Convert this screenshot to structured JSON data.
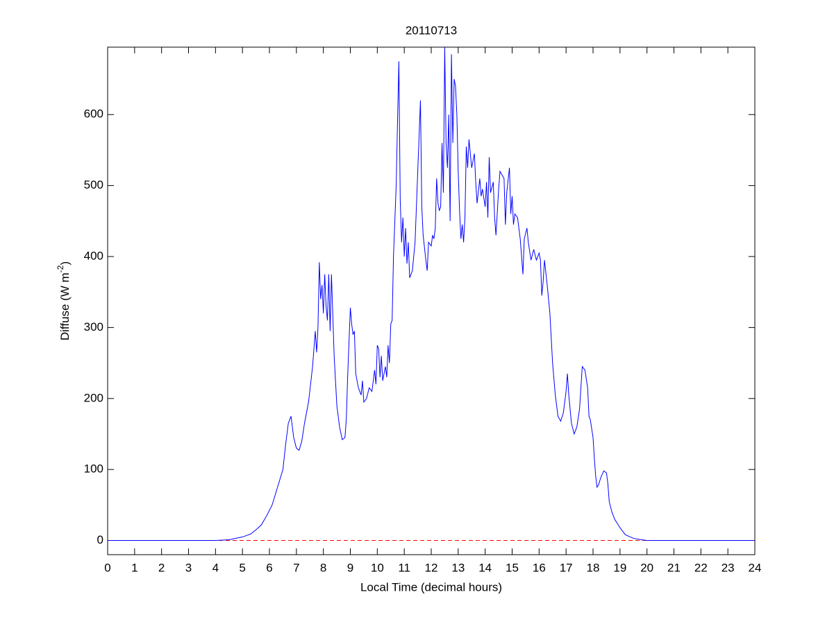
{
  "chart_data": {
    "type": "line",
    "title": "20110713",
    "xlabel": "Local Time (decimal hours)",
    "ylabel": [
      "Diffuse (W m",
      "-2",
      ")"
    ],
    "xlim": [
      0,
      24
    ],
    "xticks": [
      0,
      1,
      2,
      3,
      4,
      5,
      6,
      7,
      8,
      9,
      10,
      11,
      12,
      13,
      14,
      15,
      16,
      17,
      18,
      19,
      20,
      21,
      22,
      23,
      24
    ],
    "ylim": [
      -20,
      695
    ],
    "yticks": [
      0,
      100,
      200,
      300,
      400,
      500,
      600
    ],
    "grid": false,
    "reference_line": {
      "value": 0,
      "color": "#ff0000",
      "dashed": true
    },
    "x": [
      0,
      2,
      4,
      4.5,
      5,
      5.3,
      5.5,
      5.7,
      5.9,
      6.1,
      6.3,
      6.5,
      6.6,
      6.7,
      6.8,
      6.9,
      7.0,
      7.1,
      7.2,
      7.3,
      7.45,
      7.6,
      7.7,
      7.75,
      7.8,
      7.85,
      7.9,
      7.95,
      8.0,
      8.05,
      8.1,
      8.15,
      8.2,
      8.25,
      8.3,
      8.4,
      8.5,
      8.6,
      8.7,
      8.8,
      8.85,
      8.9,
      9.0,
      9.05,
      9.1,
      9.15,
      9.2,
      9.3,
      9.4,
      9.45,
      9.5,
      9.6,
      9.7,
      9.8,
      9.9,
      9.95,
      10.0,
      10.05,
      10.1,
      10.15,
      10.2,
      10.3,
      10.35,
      10.4,
      10.45,
      10.5,
      10.55,
      10.6,
      10.7,
      10.75,
      10.8,
      10.85,
      10.9,
      10.95,
      11.0,
      11.05,
      11.1,
      11.15,
      11.2,
      11.3,
      11.4,
      11.5,
      11.6,
      11.65,
      11.7,
      11.8,
      11.85,
      11.9,
      12.0,
      12.05,
      12.1,
      12.15,
      12.2,
      12.25,
      12.3,
      12.35,
      12.4,
      12.45,
      12.5,
      12.55,
      12.6,
      12.65,
      12.7,
      12.75,
      12.8,
      12.85,
      12.9,
      12.95,
      13.0,
      13.05,
      13.1,
      13.15,
      13.2,
      13.25,
      13.3,
      13.35,
      13.4,
      13.5,
      13.6,
      13.65,
      13.7,
      13.8,
      13.85,
      13.9,
      14.0,
      14.05,
      14.1,
      14.15,
      14.2,
      14.3,
      14.35,
      14.4,
      14.5,
      14.55,
      14.7,
      14.75,
      14.8,
      14.9,
      14.95,
      15.0,
      15.05,
      15.1,
      15.2,
      15.3,
      15.4,
      15.45,
      15.55,
      15.6,
      15.7,
      15.8,
      15.9,
      16.0,
      16.05,
      16.1,
      16.15,
      16.2,
      16.3,
      16.4,
      16.5,
      16.6,
      16.7,
      16.8,
      16.9,
      17.0,
      17.05,
      17.1,
      17.2,
      17.3,
      17.4,
      17.5,
      17.6,
      17.7,
      17.8,
      17.85,
      17.9,
      18.0,
      18.05,
      18.1,
      18.15,
      18.2,
      18.3,
      18.4,
      18.5,
      18.55,
      18.6,
      18.7,
      18.8,
      19.0,
      19.2,
      19.5,
      19.8,
      20,
      22,
      24
    ],
    "series": [
      {
        "color": "#0000ff",
        "values": [
          0,
          0,
          0,
          1,
          5,
          9,
          15,
          22,
          35,
          50,
          75,
          100,
          135,
          165,
          175,
          145,
          130,
          127,
          140,
          165,
          195,
          245,
          295,
          265,
          300,
          392,
          340,
          360,
          320,
          375,
          330,
          310,
          375,
          295,
          375,
          260,
          190,
          160,
          142,
          145,
          170,
          230,
          328,
          305,
          290,
          295,
          235,
          215,
          205,
          225,
          195,
          200,
          215,
          210,
          240,
          220,
          275,
          270,
          230,
          260,
          225,
          245,
          230,
          275,
          250,
          305,
          310,
          400,
          500,
          590,
          675,
          480,
          420,
          455,
          400,
          440,
          390,
          420,
          370,
          380,
          420,
          520,
          620,
          470,
          430,
          395,
          380,
          420,
          415,
          430,
          425,
          440,
          510,
          475,
          465,
          470,
          560,
          490,
          695,
          560,
          525,
          600,
          450,
          685,
          560,
          650,
          640,
          600,
          520,
          465,
          425,
          445,
          420,
          455,
          555,
          525,
          565,
          525,
          545,
          505,
          475,
          510,
          485,
          495,
          470,
          505,
          455,
          540,
          490,
          505,
          455,
          430,
          495,
          520,
          510,
          445,
          490,
          525,
          460,
          485,
          445,
          460,
          455,
          425,
          375,
          425,
          440,
          420,
          395,
          410,
          395,
          405,
          395,
          345,
          365,
          395,
          360,
          320,
          250,
          205,
          175,
          168,
          180,
          210,
          235,
          205,
          165,
          150,
          160,
          185,
          245,
          240,
          215,
          175,
          170,
          145,
          115,
          90,
          75,
          78,
          90,
          98,
          95,
          80,
          55,
          40,
          30,
          18,
          8,
          3,
          1,
          0,
          0,
          0
        ]
      }
    ]
  }
}
